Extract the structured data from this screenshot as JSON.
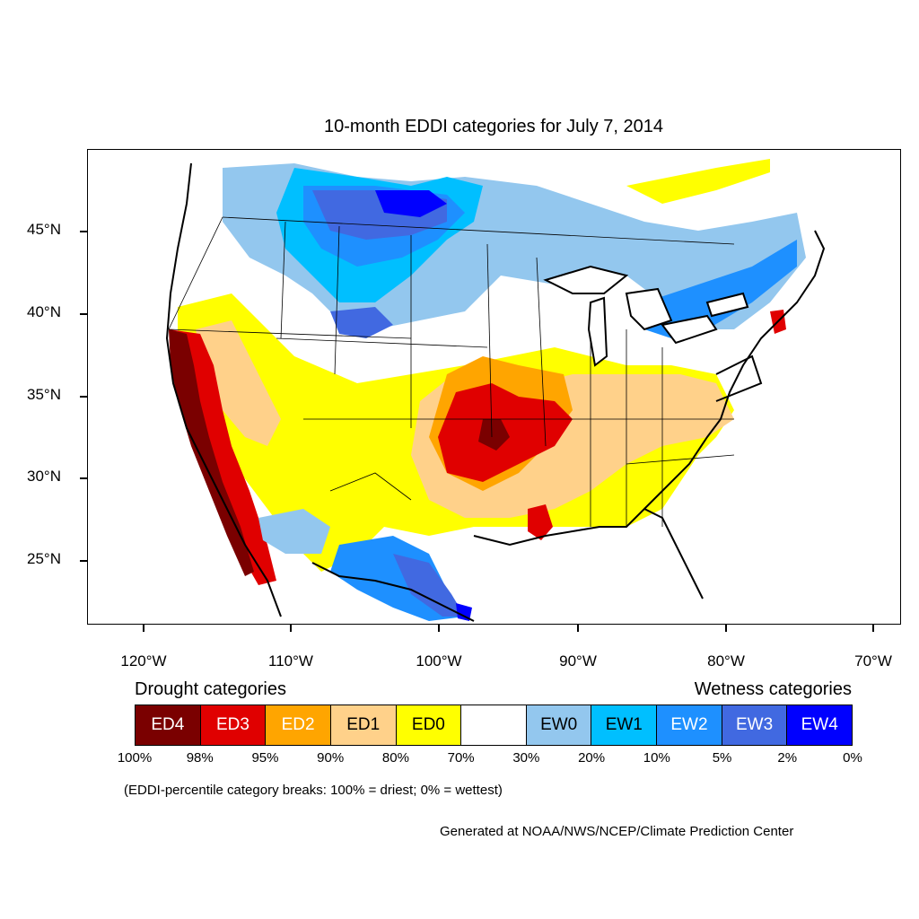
{
  "title": "10-month EDDI categories for July 7, 2014",
  "axes": {
    "lat_ticks": [
      "45°N",
      "40°N",
      "35°N",
      "30°N",
      "25°N"
    ],
    "lon_ticks": [
      "120°W",
      "110°W",
      "100°W",
      "90°W",
      "80°W",
      "70°W"
    ]
  },
  "legend": {
    "drought_heading": "Drought categories",
    "wetness_heading": "Wetness categories",
    "categories": [
      {
        "label": "ED4",
        "color": "#7a0000",
        "text_color": "#ffffff"
      },
      {
        "label": "ED3",
        "color": "#e00000",
        "text_color": "#ffffff"
      },
      {
        "label": "ED2",
        "color": "#ffa500",
        "text_color": "#ffffff"
      },
      {
        "label": "ED1",
        "color": "#ffd18a",
        "text_color": "#000000"
      },
      {
        "label": "ED0",
        "color": "#ffff00",
        "text_color": "#000000"
      },
      {
        "label": "",
        "color": "#ffffff",
        "text_color": "#000000"
      },
      {
        "label": "EW0",
        "color": "#93c7ee",
        "text_color": "#000000"
      },
      {
        "label": "EW1",
        "color": "#00bfff",
        "text_color": "#000000"
      },
      {
        "label": "EW2",
        "color": "#1e90ff",
        "text_color": "#ffffff"
      },
      {
        "label": "EW3",
        "color": "#4169e1",
        "text_color": "#ffffff"
      },
      {
        "label": "EW4",
        "color": "#0000ff",
        "text_color": "#ffffff"
      }
    ],
    "breaks": [
      "100%",
      "98%",
      "95%",
      "90%",
      "80%",
      "70%",
      "30%",
      "20%",
      "10%",
      "5%",
      "2%",
      "0%"
    ]
  },
  "note": "(EDDI-percentile category breaks: 100% = driest; 0% = wettest)",
  "credit": "Generated at NOAA/NWS/NCEP/Climate Prediction Center"
}
